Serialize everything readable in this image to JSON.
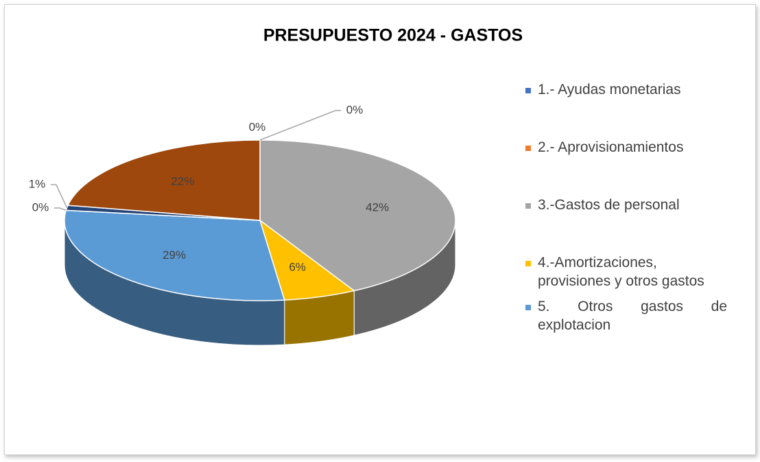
{
  "chart_data": {
    "type": "pie3d",
    "title": "PRESUPUESTO 2024 - GASTOS",
    "categories": [
      "1.- Ayudas monetarias",
      "2.- Aprovisionamientos",
      "3.-Gastos de personal",
      "4.-Amortizaciones, provisiones y otros gastos",
      "5. Otros gastos de explotacion",
      null,
      null,
      null
    ],
    "values": [
      0,
      0,
      42,
      6,
      29,
      0,
      1,
      22
    ],
    "value_labels": [
      "0%",
      "0%",
      "42%",
      "6%",
      "29%",
      "0%",
      "1%",
      "22%"
    ],
    "colors": [
      "#4472c4",
      "#ed7d31",
      "#a5a5a5",
      "#ffc000",
      "#5b9bd5",
      "#70ad47",
      "#264478",
      "#9e480e"
    ],
    "legend": "right"
  }
}
